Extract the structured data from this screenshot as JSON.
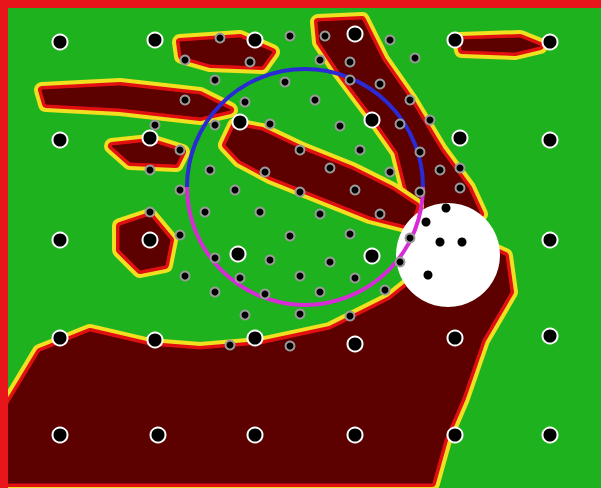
{
  "chart_data": {
    "type": "map",
    "xlim": [
      0,
      601
    ],
    "ylim": [
      0,
      488
    ],
    "tick_labels": false,
    "grid": false,
    "color": "#1fb21f",
    "regions": [
      {
        "color": "#5c0000",
        "points": [
          [
            8,
            480
          ],
          [
            8,
            405
          ],
          [
            40,
            352
          ],
          [
            90,
            332
          ],
          [
            150,
            346
          ],
          [
            200,
            350
          ],
          [
            260,
            345
          ],
          [
            330,
            330
          ],
          [
            390,
            300
          ],
          [
            430,
            268
          ],
          [
            470,
            240
          ],
          [
            505,
            256
          ],
          [
            510,
            292
          ],
          [
            482,
            340
          ],
          [
            462,
            398
          ],
          [
            444,
            440
          ],
          [
            432,
            483
          ],
          [
            8,
            483
          ]
        ]
      },
      {
        "color": "#5c0000",
        "points": [
          [
            318,
            22
          ],
          [
            362,
            20
          ],
          [
            382,
            60
          ],
          [
            410,
            100
          ],
          [
            440,
            150
          ],
          [
            468,
            188
          ],
          [
            480,
            214
          ],
          [
            432,
            226
          ],
          [
            410,
            200
          ],
          [
            398,
            152
          ],
          [
            370,
            112
          ],
          [
            340,
            72
          ],
          [
            320,
            42
          ]
        ]
      },
      {
        "color": "#5c0000",
        "points": [
          [
            235,
            126
          ],
          [
            262,
            131
          ],
          [
            302,
            150
          ],
          [
            352,
            170
          ],
          [
            392,
            190
          ],
          [
            416,
            206
          ],
          [
            410,
            226
          ],
          [
            370,
            216
          ],
          [
            320,
            196
          ],
          [
            270,
            176
          ],
          [
            240,
            160
          ],
          [
            226,
            145
          ]
        ]
      },
      {
        "color": "#5c0000",
        "points": [
          [
            120,
            226
          ],
          [
            150,
            216
          ],
          [
            170,
            240
          ],
          [
            165,
            265
          ],
          [
            140,
            270
          ],
          [
            120,
            250
          ]
        ]
      },
      {
        "color": "#5c0000",
        "points": [
          [
            42,
            90
          ],
          [
            120,
            86
          ],
          [
            200,
            95
          ],
          [
            230,
            110
          ],
          [
            200,
            117
          ],
          [
            120,
            108
          ],
          [
            46,
            104
          ]
        ]
      },
      {
        "color": "#5c0000",
        "points": [
          [
            180,
            42
          ],
          [
            240,
            38
          ],
          [
            272,
            52
          ],
          [
            262,
            66
          ],
          [
            210,
            64
          ],
          [
            182,
            56
          ]
        ]
      },
      {
        "color": "#5c0000",
        "points": [
          [
            112,
            146
          ],
          [
            150,
            142
          ],
          [
            182,
            152
          ],
          [
            176,
            164
          ],
          [
            130,
            162
          ]
        ]
      },
      {
        "color": "#5c0000",
        "points": [
          [
            460,
            40
          ],
          [
            520,
            38
          ],
          [
            540,
            46
          ],
          [
            515,
            52
          ],
          [
            462,
            50
          ]
        ]
      }
    ],
    "disk": {
      "center": [
        448,
        255
      ],
      "radius": 52,
      "color": "#ffffff"
    },
    "circle": {
      "center": [
        305,
        187
      ],
      "radius": 118,
      "colors": [
        "#2b2bd6",
        "#d62bd6"
      ]
    },
    "series": [
      {
        "marker": "circle",
        "color": "#000000",
        "points": [
          [
            60,
            42
          ],
          [
            155,
            40
          ],
          [
            255,
            40
          ],
          [
            355,
            34
          ],
          [
            455,
            40
          ],
          [
            550,
            42
          ],
          [
            60,
            140
          ],
          [
            150,
            138
          ],
          [
            460,
            138
          ],
          [
            550,
            140
          ],
          [
            60,
            240
          ],
          [
            150,
            240
          ],
          [
            550,
            240
          ],
          [
            60,
            338
          ],
          [
            155,
            340
          ],
          [
            255,
            338
          ],
          [
            355,
            344
          ],
          [
            455,
            338
          ],
          [
            550,
            336
          ],
          [
            60,
            435
          ],
          [
            158,
            435
          ],
          [
            255,
            435
          ],
          [
            355,
            435
          ],
          [
            455,
            435
          ],
          [
            550,
            435
          ],
          [
            240,
            122
          ],
          [
            372,
            120
          ],
          [
            238,
            254
          ],
          [
            372,
            256
          ]
        ]
      },
      {
        "marker": "ring",
        "color": "#000000",
        "points": [
          [
            220,
            38
          ],
          [
            290,
            36
          ],
          [
            325,
            36
          ],
          [
            390,
            40
          ],
          [
            185,
            60
          ],
          [
            250,
            62
          ],
          [
            320,
            60
          ],
          [
            350,
            62
          ],
          [
            415,
            58
          ],
          [
            215,
            80
          ],
          [
            285,
            82
          ],
          [
            350,
            80
          ],
          [
            380,
            84
          ],
          [
            185,
            100
          ],
          [
            245,
            102
          ],
          [
            315,
            100
          ],
          [
            410,
            100
          ],
          [
            155,
            125
          ],
          [
            215,
            125
          ],
          [
            270,
            124
          ],
          [
            340,
            126
          ],
          [
            400,
            124
          ],
          [
            430,
            120
          ],
          [
            180,
            150
          ],
          [
            300,
            150
          ],
          [
            360,
            150
          ],
          [
            420,
            152
          ],
          [
            460,
            168
          ],
          [
            150,
            170
          ],
          [
            210,
            170
          ],
          [
            265,
            172
          ],
          [
            330,
            168
          ],
          [
            390,
            172
          ],
          [
            440,
            170
          ],
          [
            180,
            190
          ],
          [
            235,
            190
          ],
          [
            300,
            192
          ],
          [
            355,
            190
          ],
          [
            420,
            192
          ],
          [
            460,
            188
          ],
          [
            150,
            212
          ],
          [
            205,
            212
          ],
          [
            260,
            212
          ],
          [
            320,
            214
          ],
          [
            380,
            214
          ],
          [
            180,
            235
          ],
          [
            290,
            236
          ],
          [
            350,
            234
          ],
          [
            410,
            238
          ],
          [
            215,
            258
          ],
          [
            270,
            260
          ],
          [
            330,
            262
          ],
          [
            400,
            262
          ],
          [
            185,
            276
          ],
          [
            240,
            278
          ],
          [
            300,
            276
          ],
          [
            355,
            278
          ],
          [
            215,
            292
          ],
          [
            265,
            294
          ],
          [
            320,
            292
          ],
          [
            385,
            290
          ],
          [
            245,
            315
          ],
          [
            300,
            314
          ],
          [
            350,
            316
          ],
          [
            230,
            345
          ],
          [
            290,
            346
          ]
        ]
      },
      {
        "marker": "dot",
        "color": "#000000",
        "points": [
          [
            426,
            222
          ],
          [
            446,
            208
          ],
          [
            462,
            242
          ],
          [
            440,
            242
          ],
          [
            428,
            275
          ]
        ]
      }
    ]
  }
}
